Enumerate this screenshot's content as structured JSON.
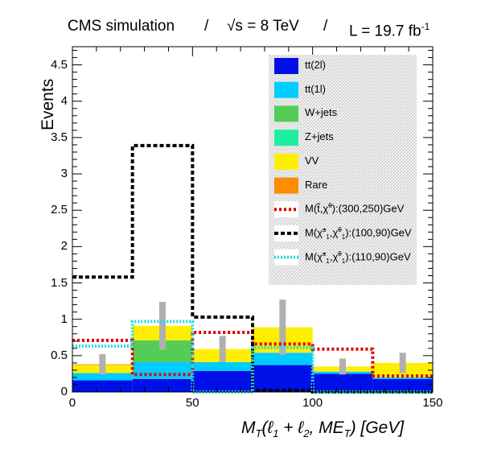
{
  "header": {
    "experiment": "CMS simulation",
    "sep1": "/",
    "energy_sqrt": "√s",
    "energy_value": "= 8 TeV",
    "sep2": "/",
    "lumi_label": "L = 19.7 fb",
    "lumi_exp": "-1"
  },
  "chart_data": {
    "type": "bar",
    "stacked": true,
    "bin_edges": [
      0,
      25,
      50,
      75,
      100,
      125,
      150
    ],
    "xlim": [
      0,
      150
    ],
    "ylim": [
      0,
      4.75
    ],
    "xlabel": "M_T(ℓ_1 + ℓ_2, ME_T)   [GeV]",
    "xlabel_parts": {
      "m": "M",
      "t": "T",
      "l": "(ℓ",
      "one": "1",
      "plus": " + ℓ",
      "two": "2",
      "mid": ", ME",
      "t2": "T",
      "end": ")   [GeV]"
    },
    "ylabel": "Events",
    "xticks": [
      "0",
      "50",
      "100",
      "150"
    ],
    "yticks": [
      "0",
      "0.5",
      "1",
      "1.5",
      "2",
      "2.5",
      "3",
      "3.5",
      "4",
      "4.5"
    ],
    "grid": false,
    "legend_position": "top-right",
    "series": [
      {
        "name": "tt(2l)",
        "color": "#0010e8",
        "values": [
          0.16,
          0.18,
          0.29,
          0.37,
          0.25,
          0.18
        ]
      },
      {
        "name": "tt(1l)",
        "color": "#00ccff",
        "values": [
          0.1,
          0.23,
          0.12,
          0.17,
          0.03,
          0.02
        ]
      },
      {
        "name": "W+jets",
        "color": "#55cc55",
        "values": [
          0.0,
          0.3,
          0.0,
          0.0,
          0.0,
          0.0
        ]
      },
      {
        "name": "Z+jets",
        "color": "#1cf0a0",
        "values": [
          0.0,
          0.0,
          0.0,
          0.0,
          0.0,
          0.0
        ]
      },
      {
        "name": "VV",
        "color": "#ffee00",
        "values": [
          0.11,
          0.2,
          0.18,
          0.35,
          0.07,
          0.2
        ]
      },
      {
        "name": "Rare",
        "color": "#ff8c00",
        "values": [
          0.01,
          0.0,
          0.0,
          0.0,
          0.0,
          0.0
        ]
      }
    ],
    "stat_error": [
      0.14,
      0.33,
      0.18,
      0.38,
      0.11,
      0.14
    ],
    "stat_error_color": "#b0b0b0",
    "signals": [
      {
        "name": "M(t̃,χ̃⁰):(300,250)GeV",
        "label_parts": {
          "pre": "M(",
          "a": "t̃",
          "mid": ",",
          "b": "χ̃",
          "bsup": "0",
          "post": "):(300,250)GeV"
        },
        "color": "#dd0000",
        "dash": "3,3",
        "values": [
          0.71,
          0.24,
          0.82,
          0.66,
          0.59,
          0.22
        ]
      },
      {
        "name": "M(χ̃±1,χ̃01):(100,90)GeV",
        "label_parts": {
          "pre": "M(",
          "a": "χ̃",
          "asup": "±",
          "asub": "1",
          "mid": ",",
          "b": "χ̃",
          "bsup": "0",
          "bsub": "1",
          "post": "):(100,90)GeV"
        },
        "color": "#000000",
        "dash": "5,3",
        "values": [
          1.58,
          3.39,
          1.03,
          0.02,
          0.0,
          0.0
        ]
      },
      {
        "name": "M(χ̃±1,χ̃01):(110,90)GeV",
        "label_parts": {
          "pre": "M(",
          "a": "χ̃",
          "asup": "±",
          "asub": "1",
          "mid": ",",
          "b": "χ̃",
          "bsup": "0",
          "bsub": "1",
          "post": "):(110,90)GeV"
        },
        "color": "#22dddd",
        "dash": "2,2",
        "values": [
          0.63,
          0.97,
          0.0,
          0.61,
          0.0,
          0.0
        ]
      }
    ]
  }
}
